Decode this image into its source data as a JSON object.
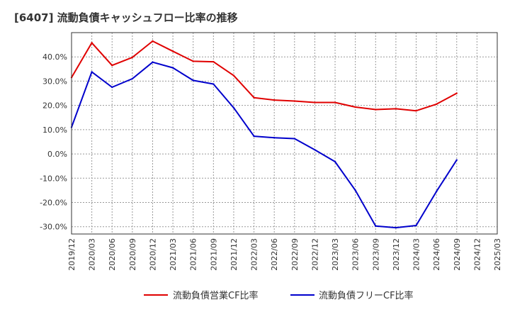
{
  "chart_data": {
    "type": "line",
    "title": "[6407]  流動負債キャッシュフロー比率の推移",
    "xlabel": "",
    "ylabel": "",
    "ylim": [
      -33,
      50
    ],
    "yticks": [
      40,
      30,
      20,
      10,
      0,
      -10,
      -20,
      -30
    ],
    "ytick_labels": [
      "40.0%",
      "30.0%",
      "20.0%",
      "10.0%",
      "0.0%",
      "-10.0%",
      "-20.0%",
      "-30.0%"
    ],
    "x_tick_labels": [
      "2019/12",
      "2020/03",
      "2020/06",
      "2020/09",
      "2020/12",
      "2021/03",
      "2021/06",
      "2021/09",
      "2021/12",
      "2022/03",
      "2022/06",
      "2022/09",
      "2022/12",
      "2023/03",
      "2023/06",
      "2023/09",
      "2023/12",
      "2024/03",
      "2024/06",
      "2024/09",
      "2024/12",
      "2025/03"
    ],
    "grid": true,
    "legend_position": "bottom",
    "series": [
      {
        "name": "流動負債営業CF比率",
        "color": "#e00000",
        "values": [
          31.5,
          45.8,
          36.5,
          39.8,
          46.5,
          42.3,
          38.2,
          38.0,
          32.3,
          23.2,
          22.2,
          21.8,
          21.2,
          21.2,
          19.3,
          18.3,
          18.6,
          17.8,
          20.5,
          25.0,
          null,
          null
        ]
      },
      {
        "name": "流動負債フリーCF比率",
        "color": "#0000cc",
        "values": [
          11.0,
          33.8,
          27.5,
          31.0,
          37.8,
          35.5,
          30.3,
          28.8,
          19.0,
          7.3,
          6.7,
          6.3,
          1.7,
          -3.2,
          -15.0,
          -29.7,
          -30.4,
          -29.5,
          -15.5,
          -2.5,
          null,
          null
        ]
      }
    ]
  }
}
